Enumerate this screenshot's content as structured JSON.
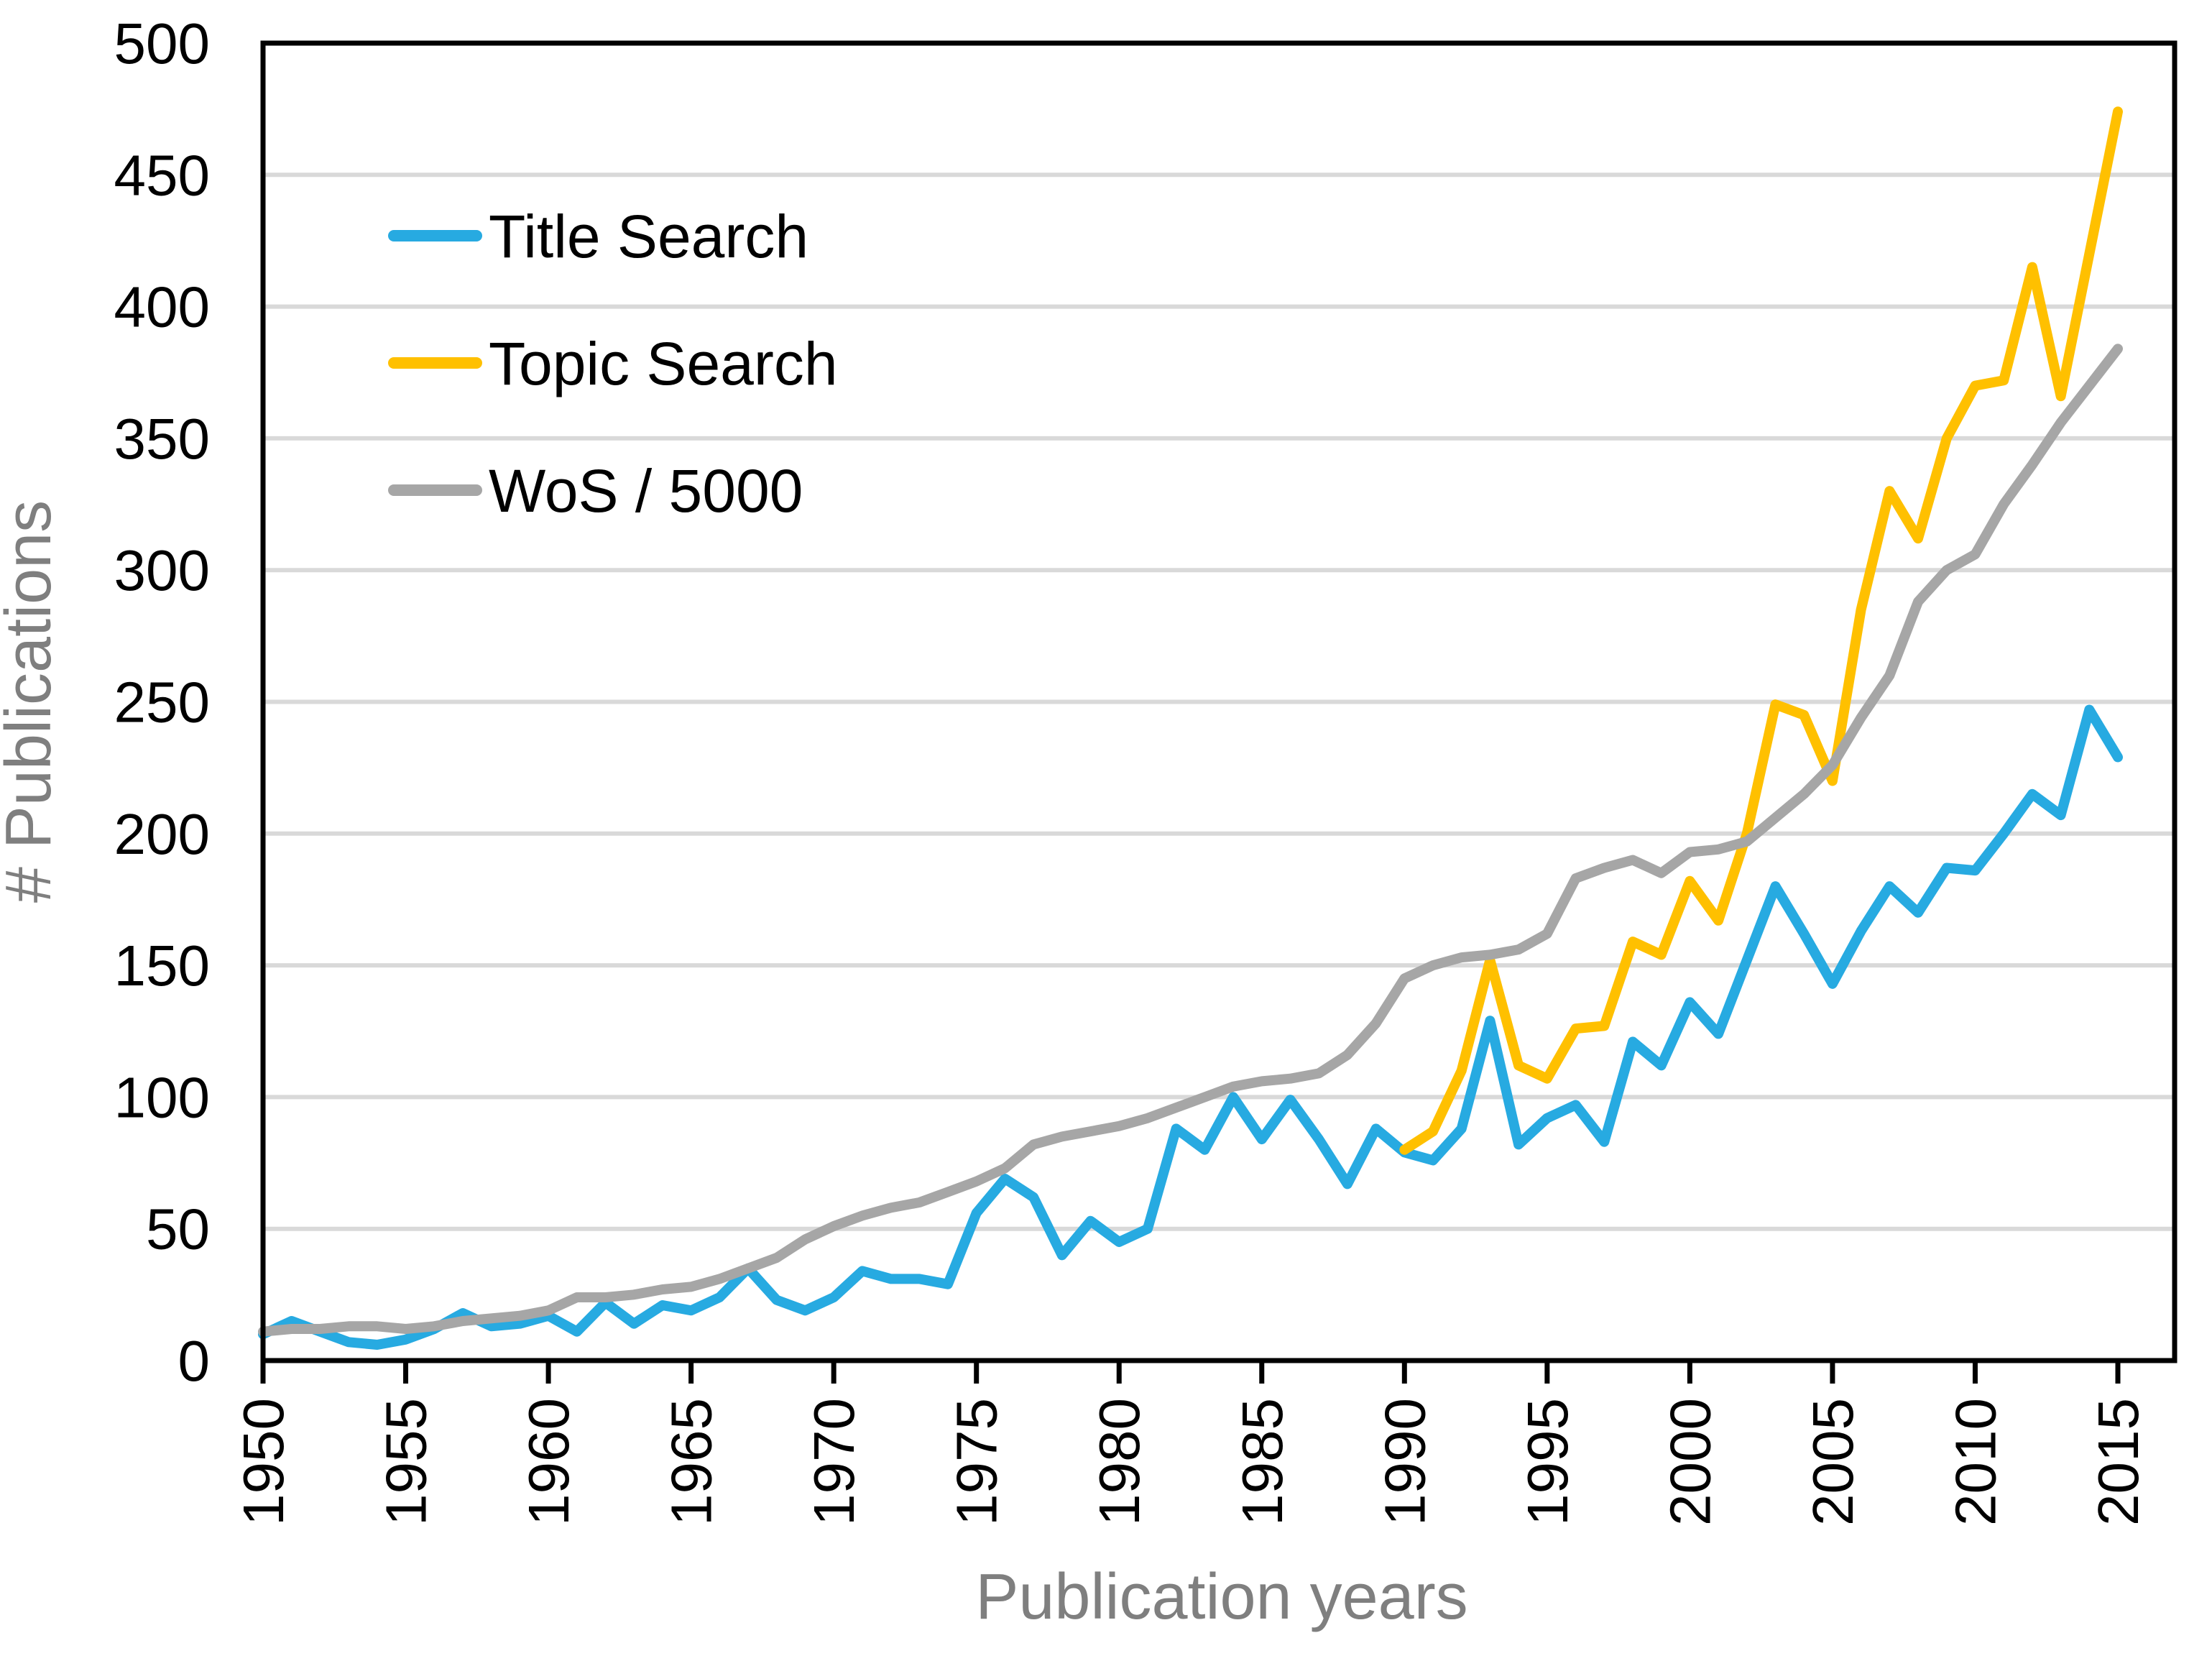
{
  "chart_data": {
    "type": "line",
    "title": "",
    "xlabel": "Publication years",
    "ylabel": "# Publications",
    "x_start": 1950,
    "x_end": 2015,
    "x_tick_step": 5,
    "ylim": [
      0,
      500
    ],
    "y_tick_step": 50,
    "grid": "horizontal-only",
    "legend_position": "inside-top-left",
    "background_color": "#FFFFFF",
    "gridline_color": "#D9D9D9",
    "axis_line_color": "#000000",
    "tick_label_color": "#000000",
    "axis_title_color": "#7F7F7F",
    "x_tick_labels": [
      "1950",
      "1955",
      "1960",
      "1965",
      "1970",
      "1975",
      "1980",
      "1985",
      "1990",
      "1995",
      "2000",
      "2005",
      "2010",
      "2015"
    ],
    "y_tick_labels": [
      "0",
      "50",
      "100",
      "150",
      "200",
      "250",
      "300",
      "350",
      "400",
      "450",
      "500"
    ],
    "series": [
      {
        "name": "Title Search",
        "color": "#27AAE1",
        "start_year": 1950,
        "values": [
          10,
          15,
          11,
          7,
          6,
          8,
          12,
          18,
          13,
          14,
          17,
          11,
          22,
          14,
          21,
          19,
          24,
          35,
          23,
          19,
          24,
          34,
          31,
          31,
          29,
          56,
          69,
          62,
          40,
          53,
          45,
          50,
          88,
          80,
          100,
          84,
          99,
          84,
          67,
          88,
          79,
          76,
          88,
          129,
          82,
          92,
          97,
          83,
          121,
          112,
          136,
          124,
          152,
          180,
          162,
          143,
          163,
          180,
          170,
          187,
          186,
          200,
          215,
          207,
          247,
          229
        ]
      },
      {
        "name": "Topic Search",
        "color": "#FFC000",
        "start_year": 1990,
        "values": [
          80,
          87,
          110,
          152,
          112,
          107,
          126,
          127,
          159,
          154,
          182,
          167,
          200,
          249,
          245,
          220,
          285,
          330,
          312,
          350,
          370,
          372,
          415,
          366,
          420,
          474
        ]
      },
      {
        "name": "WoS / 5000",
        "color": "#A6A6A6",
        "start_year": 1950,
        "values": [
          11,
          12,
          12,
          13,
          13,
          12,
          13,
          15,
          16,
          17,
          19,
          24,
          24,
          25,
          27,
          28,
          31,
          35,
          39,
          46,
          51,
          55,
          58,
          60,
          64,
          68,
          73,
          82,
          85,
          87,
          89,
          92,
          96,
          100,
          104,
          106,
          107,
          109,
          116,
          128,
          145,
          150,
          153,
          154,
          156,
          162,
          183,
          187,
          190,
          185,
          193,
          194,
          197,
          206,
          215,
          226,
          244,
          260,
          288,
          300,
          306,
          325,
          340,
          356,
          370,
          384
        ]
      }
    ]
  }
}
